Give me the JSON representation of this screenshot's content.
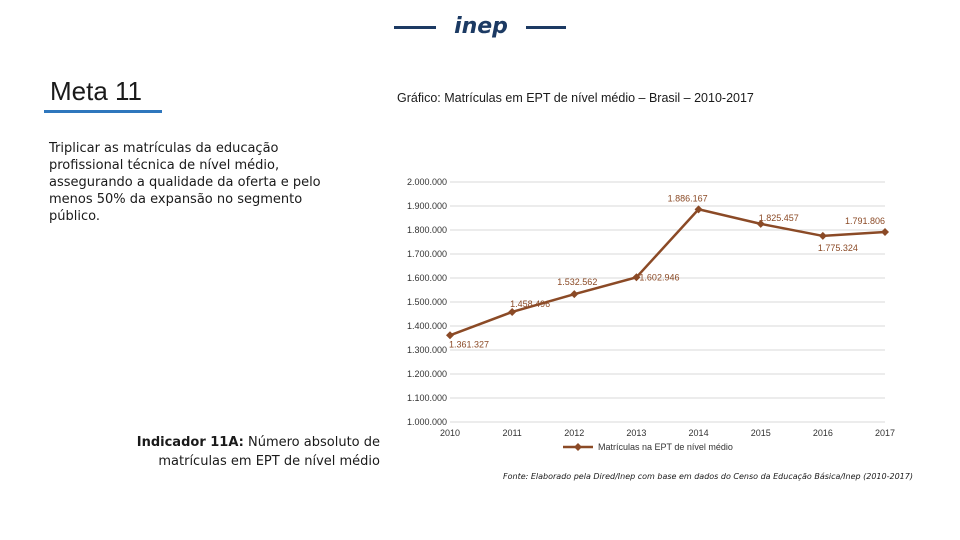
{
  "header": {
    "logo_text": "inep"
  },
  "meta": {
    "title": "Meta 11",
    "description": "Triplicar as matrículas da educação profissional técnica de nível médio, assegurando a qualidade da oferta e pelo menos 50% da expansão no segmento público."
  },
  "indicator": {
    "label": "Indicador 11A:",
    "text": "Número absoluto de matrículas em EPT de nível médio"
  },
  "chart_title": "Gráfico: Matrículas em EPT de nível médio – Brasil – 2010-2017",
  "source_note": "Fonte: Elaborado pela Dired/Inep com base em dados do Censo da Educação Básica/Inep (2010-2017)",
  "colors": {
    "series": "#8b4a26",
    "accent": "#2f77bd",
    "brand": "#1c3a63",
    "grid": "#d9d9d9"
  },
  "chart_data": {
    "type": "line",
    "title": "Gráfico: Matrículas em EPT de nível médio – Brasil – 2010-2017",
    "xlabel": "",
    "ylabel": "",
    "x": [
      "2010",
      "2011",
      "2012",
      "2013",
      "2014",
      "2015",
      "2016",
      "2017"
    ],
    "ylim": [
      1000000,
      2000000
    ],
    "y_ticks": [
      1000000,
      1100000,
      1200000,
      1300000,
      1400000,
      1500000,
      1600000,
      1700000,
      1800000,
      1900000,
      2000000
    ],
    "y_tick_labels": [
      "1.000.000",
      "1.100.000",
      "1.200.000",
      "1.300.000",
      "1.400.000",
      "1.500.000",
      "1.600.000",
      "1.700.000",
      "1.800.000",
      "1.900.000",
      "2.000.000"
    ],
    "grid": true,
    "legend_position": "bottom",
    "series": [
      {
        "name": "Matrículas na EPT de nível médio",
        "values": [
          1361327,
          1458496,
          1532562,
          1602946,
          1886167,
          1825457,
          1775324,
          1791806
        ],
        "data_labels": [
          "1.361.327",
          "1.458.496",
          "1.532.562",
          "1.602.946",
          "1.886.167",
          "1.825.457",
          "1.775.324",
          "1.791.806"
        ]
      }
    ]
  }
}
